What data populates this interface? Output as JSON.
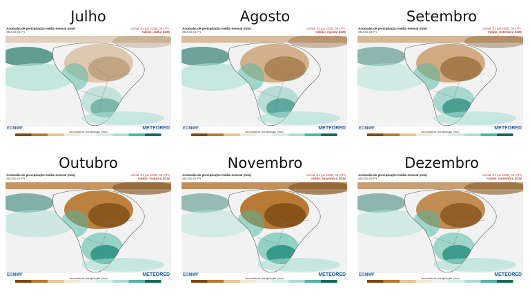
{
  "panels": [
    {
      "month": "Julho",
      "title": "Anomalia de precipitação média mensal (mm)",
      "subtitle": "SEAS5 (E-P)",
      "init": "Inicial: 01 jun 2026, 00 UTC",
      "valid": "Válido: Julho 2026",
      "logo_left": "ECMWF",
      "logo_right": "METEORED",
      "colorbar_label": "Anomalia de precipitação (mm)"
    },
    {
      "month": "Agosto",
      "title": "Anomalia de precipitação média mensal (mm)",
      "subtitle": "SEAS5 (E-P)",
      "init": "Inicial: 01 jun 2026, 00 UTC",
      "valid": "Válido: Agosto 2026",
      "logo_left": "ECMWF",
      "logo_right": "METEORED",
      "colorbar_label": "Anomalia de precipitação (mm)"
    },
    {
      "month": "Setembro",
      "title": "Anomalia de precipitação média mensal (mm)",
      "subtitle": "SEAS5 (E-P)",
      "init": "Inicial: 01 jun 2026, 00 UTC",
      "valid": "Válido: Setembro 2026",
      "logo_left": "ECMWF",
      "logo_right": "METEORED",
      "colorbar_label": "Anomalia de precipitação (mm)"
    },
    {
      "month": "Outubro",
      "title": "Anomalia de precipitação média mensal (mm)",
      "subtitle": "SEAS5 (E-P)",
      "init": "Inicial: 01 jun 2026, 00 UTC",
      "valid": "Válido: Outubro 2026",
      "logo_left": "ECMWF",
      "logo_right": "METEORED",
      "colorbar_label": "Anomalia de precipitação (mm)"
    },
    {
      "month": "Novembro",
      "title": "Anomalia de precipitação média mensal (mm)",
      "subtitle": "SEAS5 (E-P)",
      "init": "Inicial: 01 jun 2026, 00 UTC",
      "valid": "Válido: Novembro 2026",
      "logo_left": "ECMWF",
      "logo_right": "METEORED",
      "colorbar_label": "Anomalia de precipitação (mm)"
    },
    {
      "month": "Dezembro",
      "title": "Anomalia de precipitação média mensal (mm)",
      "subtitle": "SEAS5 (E-P)",
      "init": "Inicial: 01 jun 2026, 00 UTC",
      "valid": "Válido: Dezembro 2026",
      "logo_left": "ECMWF",
      "logo_right": "METEORED",
      "colorbar_label": "Anomalia de precipitação (mm)"
    }
  ],
  "colors": {
    "dry_strong": "#7a4a12",
    "dry": "#b97a35",
    "dry_light": "#e6c594",
    "neutral": "#f2f2f2",
    "wet_light": "#a8dfd2",
    "wet": "#4bb8a3",
    "wet_strong": "#0f6b5e",
    "coast": "#555555"
  }
}
